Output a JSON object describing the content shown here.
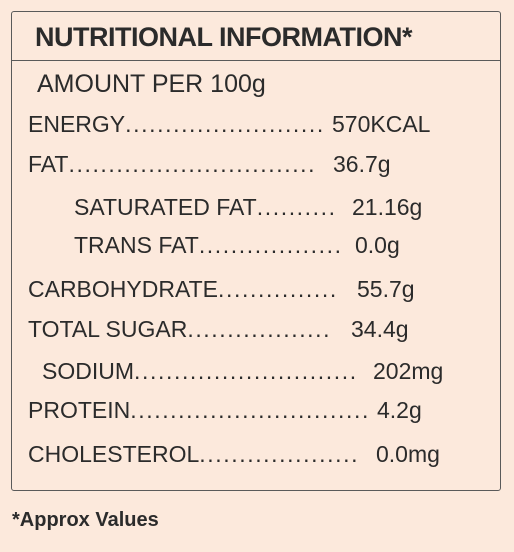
{
  "title": "NUTRITIONAL INFORMATION*",
  "serving": "AMOUNT PER 100g",
  "rows": [
    {
      "label": "ENERGY",
      "leader": ".........................",
      "value": "570KCAL"
    },
    {
      "label": "FAT",
      "leader": "...............................",
      "value": "36.7g"
    },
    {
      "label": "SATURATED FAT",
      "leader": "..........",
      "value": "21.16g"
    },
    {
      "label": "TRANS FAT",
      "leader": "..................",
      "value": "0.0g"
    },
    {
      "label": "CARBOHYDRATE",
      "leader": "...............",
      "value": "55.7g"
    },
    {
      "label": "TOTAL SUGAR",
      "leader": "..................",
      "value": "34.4g"
    },
    {
      "label": "SODIUM",
      "leader": "............................",
      "value": "202mg"
    },
    {
      "label": "PROTEIN",
      "leader": "..............................",
      "value": "4.2g"
    },
    {
      "label": "CHOLESTEROL",
      "leader": "....................",
      "value": "0.0mg"
    }
  ],
  "footnote": "*Approx Values"
}
